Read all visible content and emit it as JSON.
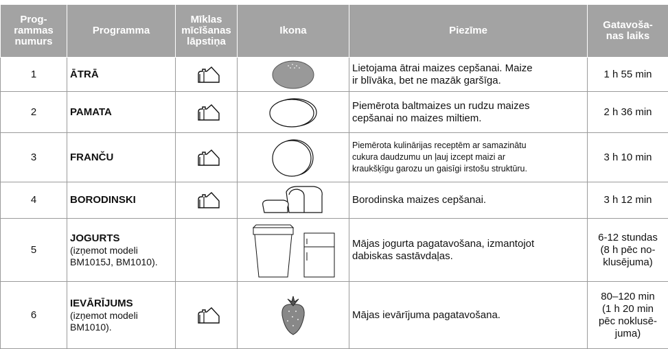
{
  "header": {
    "columns": [
      [
        "Prog-",
        "rammas",
        "numurs"
      ],
      [
        "Programma"
      ],
      [
        "Mīklas",
        "mīcīšanas",
        "lāpstiņa"
      ],
      [
        "Ikona"
      ],
      [
        "Piezīme"
      ],
      [
        "Gatavoša-",
        "nas laiks"
      ]
    ]
  },
  "table": {
    "rows": [
      {
        "number": "1",
        "program": "ĀTRĀ",
        "note": [
          "Lietojama ātrai maizes cepšanai. Maize",
          "ir blīvāka, bet ne mazāk garšīga."
        ],
        "time": [
          "1 h 55 min"
        ]
      },
      {
        "number": "2",
        "program": "PAMATA",
        "note": [
          "Piemērota baltmaizes un rudzu maizes",
          "cepšanai no maizes miltiem."
        ],
        "time": [
          "2 h 36 min"
        ]
      },
      {
        "number": "3",
        "program": "FRANČU",
        "note": [
          "Piemērota kulinārijas receptēm ar samazinātu",
          "cukura daudzumu un ļauj izcept maizi ar",
          "kraukšķīgu garozu un gaisīgi irstošu struktūru."
        ],
        "time": [
          "3 h 10 min"
        ]
      },
      {
        "number": "4",
        "program": "BORODINSKI",
        "note": [
          "Borodinska maizes cepšanai."
        ],
        "time": [
          "3 h 12 min"
        ]
      },
      {
        "number": "5",
        "program": "JOGURTS",
        "program_note": [
          "(izņemot modeli",
          "BM1015J, BM1010)."
        ],
        "note": [
          "Mājas jogurta pagatavošana, izmantojot",
          "dabiskas sastāvdaļas."
        ],
        "time": [
          "6-12 stundas",
          "(8 h  pēc no-",
          "klusējuma)"
        ]
      },
      {
        "number": "6",
        "program": "IEVĀRĪJUMS",
        "program_note": [
          "(izņemot modeli",
          "BM1010)."
        ],
        "note": [
          "Mājas ievārījuma pagatavošana."
        ],
        "time": [
          "80–120 min",
          "(1 h 20 min",
          "pēc noklusē-",
          "juma)"
        ]
      }
    ]
  }
}
